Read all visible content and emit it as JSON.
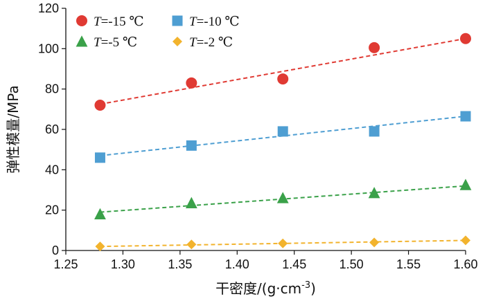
{
  "chart_data": {
    "type": "scatter",
    "xlabel": "干密度/(g·cm",
    "xlabel_sup": "-3",
    "xlabel_tail": ")",
    "ylabel": "弹性模量/MPa",
    "xlim": [
      1.25,
      1.6
    ],
    "ylim": [
      0,
      120
    ],
    "xticks": [
      "1.25",
      "1.30",
      "1.35",
      "1.40",
      "1.45",
      "1.50",
      "1.55",
      "1.60"
    ],
    "yticks": [
      "0",
      "20",
      "40",
      "60",
      "80",
      "100",
      "120"
    ],
    "grid": false,
    "legend_position": "top-left",
    "series": [
      {
        "name": "=-15 ℃",
        "name_var": "T",
        "marker": "circle",
        "color": "#E03A33",
        "x": [
          1.28,
          1.36,
          1.44,
          1.52,
          1.6
        ],
        "y": [
          72,
          83,
          85,
          100.5,
          105
        ],
        "trend": [
          [
            1.28,
            72.5
          ],
          [
            1.6,
            105
          ]
        ]
      },
      {
        "name": "=-10 ℃",
        "name_var": "T",
        "marker": "square",
        "color": "#4E9ED2",
        "x": [
          1.28,
          1.36,
          1.44,
          1.52,
          1.6
        ],
        "y": [
          46,
          52,
          59,
          59,
          66.5
        ],
        "trend": [
          [
            1.28,
            47
          ],
          [
            1.6,
            66.5
          ]
        ]
      },
      {
        "name": "=-5 ℃",
        "name_var": "T",
        "marker": "triangle",
        "color": "#3AA149",
        "x": [
          1.28,
          1.36,
          1.44,
          1.52,
          1.6
        ],
        "y": [
          18,
          23.5,
          26,
          28.5,
          32.5
        ],
        "trend": [
          [
            1.28,
            19
          ],
          [
            1.6,
            32
          ]
        ]
      },
      {
        "name": "=-2 ℃",
        "name_var": "T",
        "marker": "diamond",
        "color": "#F2B32D",
        "x": [
          1.28,
          1.36,
          1.44,
          1.52,
          1.6
        ],
        "y": [
          2,
          3,
          3.5,
          4,
          5
        ],
        "trend": [
          [
            1.28,
            2
          ],
          [
            1.6,
            5
          ]
        ]
      }
    ]
  }
}
